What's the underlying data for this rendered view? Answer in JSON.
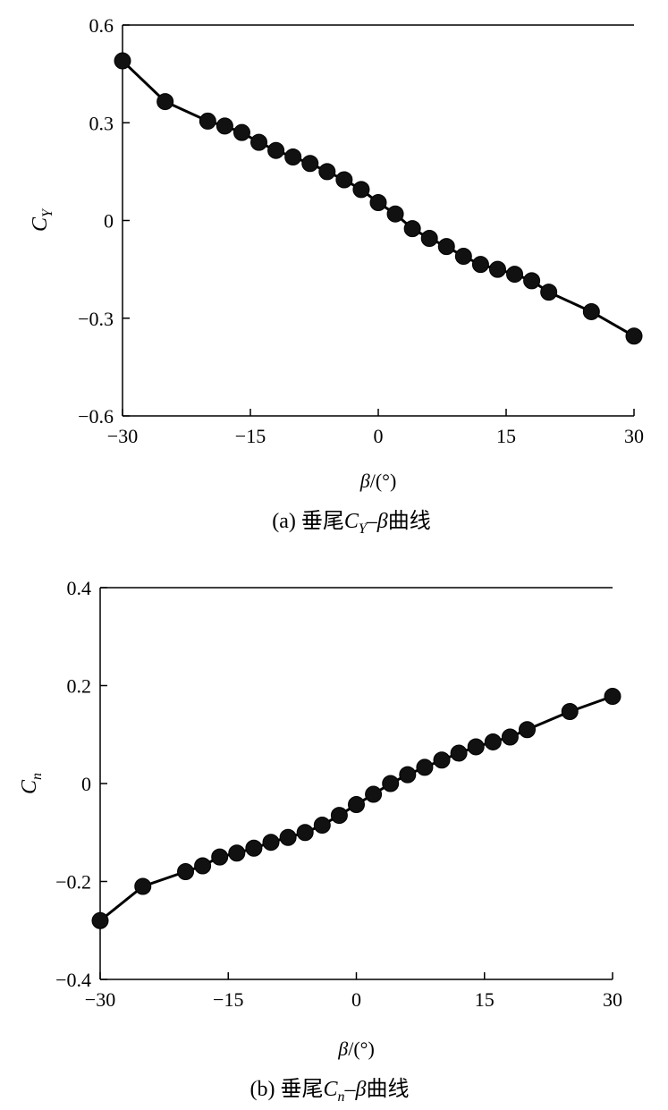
{
  "chart_data": [
    {
      "type": "line",
      "panel": "a",
      "title": "",
      "caption": {
        "prefix": "(a) 垂尾",
        "sym": "C",
        "sub": "Y",
        "mid": "–",
        "greek": "β",
        "suffix": "曲线"
      },
      "xlabel": {
        "greek": "β",
        "unit": "/(°)"
      },
      "ylabel": {
        "sym": "C",
        "sub": "Y"
      },
      "xlim": [
        -30,
        30
      ],
      "ylim": [
        -0.6,
        0.6
      ],
      "xticks": [
        -30,
        -15,
        0,
        15,
        30
      ],
      "xtick_labels": [
        "−30",
        "−15",
        "0",
        "15",
        "30"
      ],
      "yticks": [
        -0.6,
        -0.3,
        0,
        0.3,
        0.6
      ],
      "ytick_labels": [
        "−0.6",
        "−0.3",
        "0",
        "0.3",
        "0.6"
      ],
      "grid": false,
      "series": [
        {
          "x": [
            -30,
            -25,
            -20,
            -18,
            -16,
            -14,
            -12,
            -10,
            -8,
            -6,
            -4,
            -2,
            0,
            2,
            4,
            6,
            8,
            10,
            12,
            14,
            16,
            18,
            20,
            25,
            30
          ],
          "y": [
            0.49,
            0.365,
            0.305,
            0.29,
            0.27,
            0.24,
            0.215,
            0.195,
            0.175,
            0.15,
            0.125,
            0.095,
            0.055,
            0.02,
            -0.025,
            -0.055,
            -0.08,
            -0.11,
            -0.135,
            -0.15,
            -0.165,
            -0.185,
            -0.22,
            -0.28,
            -0.355
          ]
        }
      ]
    },
    {
      "type": "line",
      "panel": "b",
      "title": "",
      "caption": {
        "prefix": "(b) 垂尾",
        "sym": "C",
        "sub": "n",
        "mid": "–",
        "greek": "β",
        "suffix": "曲线"
      },
      "xlabel": {
        "greek": "β",
        "unit": "/(°)"
      },
      "ylabel": {
        "sym": "C",
        "sub": "n"
      },
      "xlim": [
        -30,
        30
      ],
      "ylim": [
        -0.4,
        0.4
      ],
      "xticks": [
        -30,
        -15,
        0,
        15,
        30
      ],
      "xtick_labels": [
        "−30",
        "−15",
        "0",
        "15",
        "30"
      ],
      "yticks": [
        -0.4,
        -0.2,
        0,
        0.2,
        0.4
      ],
      "ytick_labels": [
        "−0.4",
        "−0.2",
        "0",
        "0.2",
        "0.4"
      ],
      "grid": false,
      "series": [
        {
          "x": [
            -30,
            -25,
            -20,
            -18,
            -16,
            -14,
            -12,
            -10,
            -8,
            -6,
            -4,
            -2,
            0,
            2,
            4,
            6,
            8,
            10,
            12,
            14,
            16,
            18,
            20,
            25,
            30
          ],
          "y": [
            -0.28,
            -0.21,
            -0.18,
            -0.168,
            -0.15,
            -0.142,
            -0.132,
            -0.12,
            -0.11,
            -0.1,
            -0.085,
            -0.065,
            -0.043,
            -0.022,
            0.0,
            0.018,
            0.033,
            0.048,
            0.062,
            0.075,
            0.085,
            0.095,
            0.11,
            0.147,
            0.178
          ]
        }
      ]
    }
  ]
}
